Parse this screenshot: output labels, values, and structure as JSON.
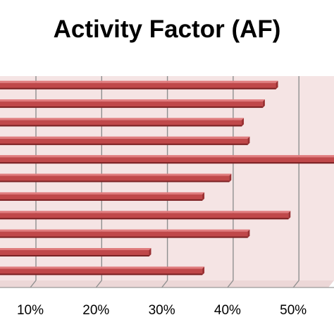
{
  "chart_data": {
    "type": "bar",
    "orientation": "horizontal",
    "title": "Activity Factor (AF)",
    "xlabel": "",
    "ylabel": "",
    "x_ticks": [
      "10%",
      "20%",
      "30%",
      "40%",
      "50%"
    ],
    "x_tick_values": [
      10,
      20,
      30,
      40,
      50
    ],
    "xlim": [
      5,
      55
    ],
    "values": [
      46.5,
      44.5,
      41.3,
      42.2,
      57.0,
      39.4,
      35.3,
      48.4,
      42.2,
      27.2,
      35.3
    ],
    "grid": true,
    "legend": "none",
    "colors": {
      "plot_background": "#f5e4e4",
      "bar_face": "#c0484a",
      "bar_top": "#e07c7e",
      "bar_bottom": "#7a2224",
      "bar_end": "#9a3032",
      "gridline": "#8f8f8f"
    }
  }
}
